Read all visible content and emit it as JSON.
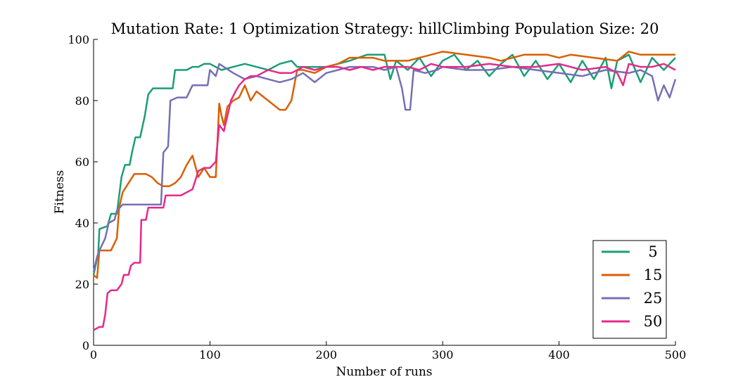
{
  "chart_data": {
    "type": "line",
    "title": "Mutation Rate: 1 Optimization Strategy: hillClimbing Population Size: 20",
    "xlabel": "Number of runs",
    "ylabel": "Fitness",
    "xlim": [
      0,
      500
    ],
    "ylim": [
      0,
      100
    ],
    "xticks": [
      0,
      100,
      200,
      300,
      400,
      500
    ],
    "yticks": [
      0,
      20,
      40,
      60,
      80,
      100
    ],
    "grid": false,
    "legend_position": "bottom-right",
    "series": [
      {
        "name": "5",
        "color": "#1b9e77",
        "points": [
          [
            0,
            23
          ],
          [
            4,
            30
          ],
          [
            5,
            38
          ],
          [
            12,
            39
          ],
          [
            15,
            43
          ],
          [
            20,
            43
          ],
          [
            24,
            55
          ],
          [
            27,
            59
          ],
          [
            31,
            59
          ],
          [
            33,
            63
          ],
          [
            36,
            68
          ],
          [
            40,
            68
          ],
          [
            44,
            75
          ],
          [
            47,
            82
          ],
          [
            51,
            84
          ],
          [
            60,
            84
          ],
          [
            68,
            84
          ],
          [
            70,
            90
          ],
          [
            80,
            90
          ],
          [
            85,
            91
          ],
          [
            90,
            91
          ],
          [
            95,
            92
          ],
          [
            100,
            92
          ],
          [
            110,
            90
          ],
          [
            120,
            91
          ],
          [
            130,
            92
          ],
          [
            140,
            91
          ],
          [
            150,
            90
          ],
          [
            160,
            92
          ],
          [
            170,
            93
          ],
          [
            175,
            91
          ],
          [
            185,
            91
          ],
          [
            200,
            91
          ],
          [
            210,
            92
          ],
          [
            220,
            93
          ],
          [
            235,
            95
          ],
          [
            250,
            95
          ],
          [
            255,
            87
          ],
          [
            260,
            93
          ],
          [
            270,
            90
          ],
          [
            280,
            94
          ],
          [
            290,
            88
          ],
          [
            300,
            93
          ],
          [
            310,
            95
          ],
          [
            320,
            90
          ],
          [
            330,
            93
          ],
          [
            340,
            88
          ],
          [
            350,
            92
          ],
          [
            360,
            95
          ],
          [
            370,
            88
          ],
          [
            380,
            93
          ],
          [
            390,
            87
          ],
          [
            400,
            92
          ],
          [
            410,
            86
          ],
          [
            420,
            93
          ],
          [
            430,
            87
          ],
          [
            440,
            94
          ],
          [
            445,
            84
          ],
          [
            450,
            93
          ],
          [
            460,
            95
          ],
          [
            470,
            86
          ],
          [
            480,
            94
          ],
          [
            490,
            90
          ],
          [
            500,
            94
          ]
        ]
      },
      {
        "name": "15",
        "color": "#d95f02",
        "points": [
          [
            0,
            23
          ],
          [
            3,
            22
          ],
          [
            5,
            31
          ],
          [
            10,
            31
          ],
          [
            15,
            31
          ],
          [
            20,
            35
          ],
          [
            22,
            45
          ],
          [
            25,
            50
          ],
          [
            30,
            53
          ],
          [
            35,
            56
          ],
          [
            40,
            56
          ],
          [
            45,
            56
          ],
          [
            50,
            55
          ],
          [
            55,
            53
          ],
          [
            60,
            52
          ],
          [
            65,
            52
          ],
          [
            70,
            53
          ],
          [
            75,
            55
          ],
          [
            80,
            59
          ],
          [
            85,
            62
          ],
          [
            90,
            55
          ],
          [
            95,
            58
          ],
          [
            100,
            55
          ],
          [
            105,
            55
          ],
          [
            108,
            79
          ],
          [
            110,
            75
          ],
          [
            112,
            72
          ],
          [
            115,
            78
          ],
          [
            120,
            80
          ],
          [
            125,
            81
          ],
          [
            130,
            85
          ],
          [
            135,
            80
          ],
          [
            140,
            83
          ],
          [
            150,
            80
          ],
          [
            160,
            77
          ],
          [
            165,
            77
          ],
          [
            170,
            80
          ],
          [
            175,
            90
          ],
          [
            180,
            90
          ],
          [
            190,
            89
          ],
          [
            200,
            91
          ],
          [
            210,
            92
          ],
          [
            220,
            94
          ],
          [
            240,
            94
          ],
          [
            250,
            93
          ],
          [
            270,
            93
          ],
          [
            290,
            95
          ],
          [
            300,
            96
          ],
          [
            320,
            95
          ],
          [
            340,
            94
          ],
          [
            350,
            93
          ],
          [
            370,
            95
          ],
          [
            390,
            95
          ],
          [
            400,
            94
          ],
          [
            410,
            95
          ],
          [
            430,
            94
          ],
          [
            450,
            93
          ],
          [
            460,
            96
          ],
          [
            470,
            95
          ],
          [
            490,
            95
          ],
          [
            500,
            95
          ]
        ]
      },
      {
        "name": "25",
        "color": "#7570b3",
        "points": [
          [
            0,
            24
          ],
          [
            3,
            29
          ],
          [
            5,
            31
          ],
          [
            10,
            35
          ],
          [
            13,
            40
          ],
          [
            18,
            41
          ],
          [
            20,
            44
          ],
          [
            25,
            46
          ],
          [
            35,
            46
          ],
          [
            45,
            46
          ],
          [
            55,
            46
          ],
          [
            58,
            46
          ],
          [
            60,
            63
          ],
          [
            64,
            65
          ],
          [
            66,
            80
          ],
          [
            72,
            81
          ],
          [
            80,
            81
          ],
          [
            85,
            85
          ],
          [
            90,
            85
          ],
          [
            98,
            85
          ],
          [
            100,
            90
          ],
          [
            105,
            88
          ],
          [
            108,
            92
          ],
          [
            112,
            91
          ],
          [
            120,
            89
          ],
          [
            130,
            87
          ],
          [
            140,
            88
          ],
          [
            150,
            87
          ],
          [
            160,
            86
          ],
          [
            170,
            87
          ],
          [
            180,
            89
          ],
          [
            190,
            86
          ],
          [
            200,
            89
          ],
          [
            210,
            90
          ],
          [
            220,
            91
          ],
          [
            230,
            91
          ],
          [
            240,
            91
          ],
          [
            250,
            90
          ],
          [
            260,
            91
          ],
          [
            265,
            84
          ],
          [
            268,
            77
          ],
          [
            272,
            77
          ],
          [
            275,
            90
          ],
          [
            285,
            89
          ],
          [
            295,
            90
          ],
          [
            300,
            91
          ],
          [
            320,
            90
          ],
          [
            340,
            90
          ],
          [
            360,
            91
          ],
          [
            380,
            90
          ],
          [
            400,
            89
          ],
          [
            420,
            88
          ],
          [
            430,
            89
          ],
          [
            440,
            90
          ],
          [
            460,
            89
          ],
          [
            470,
            90
          ],
          [
            480,
            88
          ],
          [
            485,
            80
          ],
          [
            490,
            85
          ],
          [
            495,
            81
          ],
          [
            500,
            87
          ]
        ]
      },
      {
        "name": "50",
        "color": "#e7298a",
        "points": [
          [
            0,
            5
          ],
          [
            5,
            6
          ],
          [
            8,
            6
          ],
          [
            10,
            10
          ],
          [
            12,
            17
          ],
          [
            15,
            18
          ],
          [
            20,
            18
          ],
          [
            22,
            19
          ],
          [
            24,
            20
          ],
          [
            26,
            23
          ],
          [
            30,
            23
          ],
          [
            32,
            26
          ],
          [
            35,
            27
          ],
          [
            40,
            27
          ],
          [
            41,
            41
          ],
          [
            45,
            41
          ],
          [
            47,
            45
          ],
          [
            55,
            45
          ],
          [
            60,
            45
          ],
          [
            62,
            49
          ],
          [
            70,
            49
          ],
          [
            75,
            49
          ],
          [
            80,
            50
          ],
          [
            85,
            51
          ],
          [
            90,
            57
          ],
          [
            95,
            58
          ],
          [
            100,
            58
          ],
          [
            105,
            60
          ],
          [
            108,
            72
          ],
          [
            112,
            70
          ],
          [
            115,
            75
          ],
          [
            118,
            80
          ],
          [
            122,
            83
          ],
          [
            125,
            85
          ],
          [
            130,
            87
          ],
          [
            135,
            88
          ],
          [
            140,
            88
          ],
          [
            145,
            89
          ],
          [
            150,
            90
          ],
          [
            160,
            89
          ],
          [
            170,
            89
          ],
          [
            180,
            91
          ],
          [
            190,
            90
          ],
          [
            200,
            91
          ],
          [
            210,
            91
          ],
          [
            220,
            90
          ],
          [
            230,
            91
          ],
          [
            240,
            90
          ],
          [
            250,
            91
          ],
          [
            260,
            91
          ],
          [
            270,
            91
          ],
          [
            280,
            90
          ],
          [
            290,
            92
          ],
          [
            300,
            91
          ],
          [
            320,
            91
          ],
          [
            340,
            92
          ],
          [
            360,
            91
          ],
          [
            380,
            91
          ],
          [
            400,
            92
          ],
          [
            420,
            90
          ],
          [
            440,
            91
          ],
          [
            450,
            89
          ],
          [
            455,
            85
          ],
          [
            460,
            92
          ],
          [
            470,
            91
          ],
          [
            480,
            91
          ],
          [
            490,
            92
          ],
          [
            500,
            90
          ]
        ]
      }
    ]
  }
}
